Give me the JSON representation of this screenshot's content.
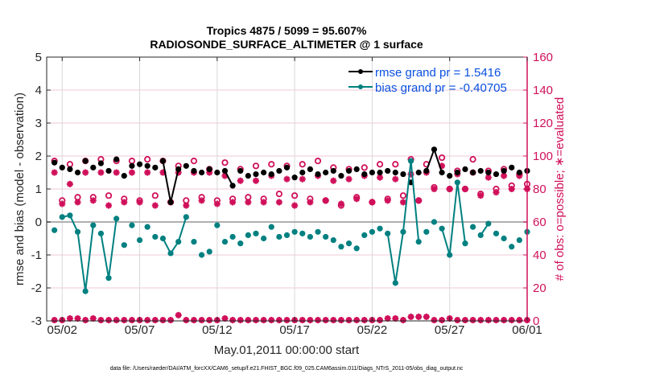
{
  "chart_data": {
    "type": "line",
    "title": "Tropics 4875 / 5099 = 95.607%",
    "subtitle": "RADIOSONDE_SURFACE_ALTIMETER @ 1 surface",
    "xlabel": "May.01,2011 00:00:00 start",
    "ylabel": "rmse and bias (model - observation)",
    "y2label": "# of obs: o=possible; ∗=evaluated",
    "footnote": "data file: /Users/raeder/DAI/ATM_forcXX/CAM6_setup/f.e21.FHIST_BGC.f09_025.CAM6assim.011/Diags_NTrS_2011-05/obs_diag_output.nc",
    "xlim_days": [
      0,
      31
    ],
    "ylim": [
      -3,
      5
    ],
    "y2lim": [
      0,
      160
    ],
    "x_ticks": [
      {
        "day": 1,
        "label": "05/02"
      },
      {
        "day": 6,
        "label": "05/07"
      },
      {
        "day": 11,
        "label": "05/12"
      },
      {
        "day": 16,
        "label": "05/17"
      },
      {
        "day": 21,
        "label": "05/22"
      },
      {
        "day": 26,
        "label": "05/27"
      },
      {
        "day": 31,
        "label": "06/01"
      }
    ],
    "y_ticks": [
      "5",
      "4",
      "3",
      "2",
      "1",
      "0",
      "-1",
      "-2",
      "-3"
    ],
    "y2_ticks": [
      "160",
      "140",
      "120",
      "100",
      "80",
      "60",
      "40",
      "20",
      "0"
    ],
    "grid": true,
    "legend_position": "top-right",
    "legend": [
      {
        "label": "rmse grand pr = 1.5416",
        "color": "#000000"
      },
      {
        "label": "bias grand pr = -0.40705",
        "color": "#008080"
      }
    ],
    "colors": {
      "rmse": "#000000",
      "bias": "#008080",
      "obs": "#d0105a",
      "zero_line": "#b0b0b0",
      "grid_h": "#f0c8d8",
      "grid_v": "#d8d8d8"
    },
    "time_step_days": 0.5,
    "first_time_day": 0.5,
    "series": [
      {
        "name": "rmse",
        "axis": "left",
        "values": [
          1.8,
          1.65,
          1.6,
          1.5,
          1.85,
          1.65,
          1.78,
          1.55,
          1.9,
          1.4,
          1.7,
          1.75,
          1.7,
          1.65,
          1.85,
          0.6,
          1.6,
          1.7,
          1.55,
          1.5,
          1.6,
          1.5,
          1.55,
          1.1,
          1.55,
          1.4,
          1.45,
          1.5,
          1.45,
          1.55,
          1.65,
          1.35,
          1.5,
          1.6,
          1.45,
          1.5,
          1.55,
          1.4,
          1.55,
          1.6,
          1.45,
          1.5,
          1.5,
          1.55,
          1.5,
          1.45,
          1.2,
          1.5,
          1.55,
          2.2,
          1.5,
          1.4,
          1.5,
          1.6,
          1.5,
          1.55,
          1.5,
          1.45,
          1.55,
          1.65,
          1.5,
          1.55
        ]
      },
      {
        "name": "bias",
        "axis": "left",
        "values": [
          -0.25,
          0.15,
          0.2,
          -0.3,
          -2.1,
          -0.1,
          -0.35,
          -1.7,
          0.1,
          -0.7,
          -0.1,
          -0.55,
          -0.15,
          -0.45,
          -0.5,
          -0.95,
          -0.6,
          0.15,
          -0.6,
          -1.0,
          -0.9,
          -0.1,
          -0.6,
          -0.45,
          -0.65,
          -0.4,
          -0.35,
          -0.5,
          -0.15,
          -0.45,
          -0.4,
          -0.3,
          -0.35,
          -0.45,
          -0.3,
          -0.45,
          -0.55,
          -0.75,
          -0.65,
          -0.8,
          -0.4,
          -0.3,
          -0.2,
          -0.35,
          -1.85,
          -0.3,
          1.85,
          -0.6,
          -0.3,
          0.0,
          -0.2,
          -1.0,
          1.2,
          -0.65,
          -0.15,
          -0.4,
          -0.05,
          -0.35,
          -0.5,
          -0.75,
          -0.55,
          -0.3
        ]
      },
      {
        "name": "possible",
        "axis": "right",
        "values": [
          97,
          73,
          95,
          75,
          97,
          75,
          98,
          76,
          97,
          74,
          97,
          73,
          98,
          76,
          97,
          72,
          94,
          73,
          97,
          75,
          92,
          73,
          96,
          74,
          92,
          75,
          94,
          74,
          95,
          77,
          94,
          76,
          95,
          74,
          97,
          73,
          93,
          70,
          92,
          75,
          93,
          72,
          95,
          74,
          95,
          76,
          98,
          73,
          95,
          81,
          99,
          80,
          91,
          80,
          98,
          77,
          91,
          80,
          92,
          82,
          89,
          83
        ]
      },
      {
        "name": "evaluated",
        "axis": "right",
        "values": [
          90,
          71,
          83,
          72,
          90,
          73,
          90,
          70,
          90,
          72,
          90,
          72,
          90,
          70,
          90,
          72,
          90,
          70,
          90,
          73,
          90,
          71,
          88,
          72,
          85,
          72,
          85,
          72,
          88,
          72,
          86,
          70,
          86,
          72,
          88,
          73,
          85,
          71,
          86,
          74,
          88,
          72,
          87,
          73,
          86,
          72,
          89,
          73,
          90,
          80,
          94,
          80,
          89,
          80,
          90,
          76,
          87,
          78,
          88,
          80,
          88,
          80
        ]
      },
      {
        "name": "possible_zero_row",
        "axis": "right",
        "values": [
          0,
          0,
          1,
          1,
          0,
          1,
          0,
          0,
          0,
          0,
          0,
          0,
          0,
          0,
          0,
          0,
          3,
          0,
          0,
          0,
          0,
          0,
          1,
          0,
          0,
          0,
          0,
          0,
          0,
          0,
          0,
          0,
          0,
          0,
          0,
          0,
          0,
          0,
          0,
          0,
          0,
          0,
          0,
          1,
          1,
          0,
          2,
          2,
          2,
          0,
          0,
          1,
          0,
          0,
          0,
          0,
          0,
          0,
          0,
          0,
          0,
          0
        ]
      }
    ]
  }
}
